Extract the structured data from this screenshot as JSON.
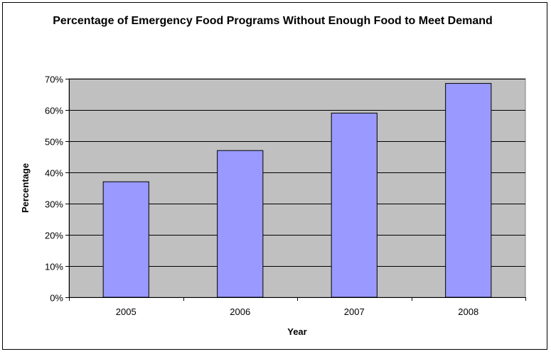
{
  "chart_data": {
    "type": "bar",
    "title": "Percentage of Emergency Food Programs Without Enough Food to Meet Demand",
    "xlabel": "Year",
    "ylabel": "Percentage",
    "categories": [
      "2005",
      "2006",
      "2007",
      "2008"
    ],
    "values": [
      37,
      47,
      59,
      68.5
    ],
    "ylim": [
      0,
      70
    ],
    "yticks": [
      0,
      10,
      20,
      30,
      40,
      50,
      60,
      70
    ],
    "ytick_suffix": "%",
    "grid": true,
    "legend": "none",
    "colors": {
      "bar_fill": "#9999ff",
      "bar_stroke": "#000000",
      "plot_background": "#c0c0c0",
      "gridline": "#000000"
    }
  }
}
